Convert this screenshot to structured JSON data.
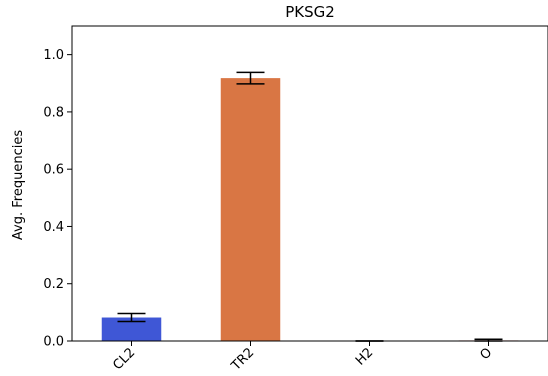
{
  "chart_data": {
    "type": "bar",
    "title": "PKSG2",
    "xlabel": "",
    "ylabel": "Avg. Frequencies",
    "categories": [
      "CL2",
      "TR2",
      "H2",
      "O"
    ],
    "values": [
      0.082,
      0.918,
      0.0,
      0.002
    ],
    "errors": [
      0.014,
      0.02,
      0.0,
      0.004
    ],
    "colors": [
      "#3f57d6",
      "#d97644",
      "#3aa655",
      "#c94040"
    ],
    "ylim": [
      0,
      1.1
    ],
    "yticks": [
      0.0,
      0.2,
      0.4,
      0.6,
      0.8,
      1.0
    ],
    "ytick_labels": [
      "0.0",
      "0.2",
      "0.4",
      "0.6",
      "0.8",
      "1.0"
    ],
    "grid": false,
    "legend": "none"
  }
}
